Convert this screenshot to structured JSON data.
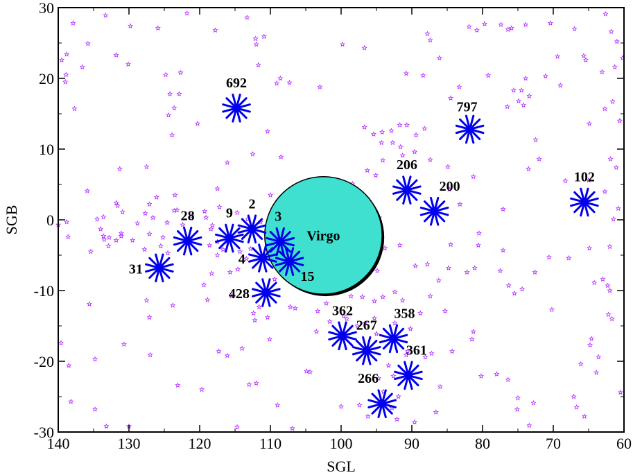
{
  "chart_data": {
    "type": "scatter",
    "title": "",
    "xlabel": "SGL",
    "ylabel": "SGB",
    "xlim": [
      140,
      60
    ],
    "ylim": [
      -30,
      30
    ],
    "x_ticks": [
      140,
      130,
      120,
      110,
      100,
      90,
      80,
      70,
      60
    ],
    "y_ticks": [
      -30,
      -20,
      -10,
      0,
      10,
      20,
      30
    ],
    "x_tick_labels": [
      "140",
      "130",
      "120",
      "110",
      "100",
      "90",
      "80",
      "70",
      "60"
    ],
    "y_tick_labels": [
      "-30",
      "-20",
      "-10",
      "0",
      "10",
      "20",
      "30"
    ],
    "grid": false,
    "colors": {
      "star": "#0000ee",
      "background_points": "#b026ff",
      "virgo_fill": "#40e0d0"
    },
    "virgo": {
      "label": "Virgo",
      "x": 102.5,
      "y": -2.2,
      "radius": 8.3
    },
    "marked_points": [
      {
        "label": "692",
        "x": 114.8,
        "y": 15.8
      },
      {
        "label": "797",
        "x": 81.8,
        "y": 12.8
      },
      {
        "label": "206",
        "x": 90.7,
        "y": 4.2
      },
      {
        "label": "200",
        "x": 86.8,
        "y": 1.2
      },
      {
        "label": "102",
        "x": 65.6,
        "y": 2.5
      },
      {
        "label": "28",
        "x": 121.7,
        "y": -3.0
      },
      {
        "label": "9",
        "x": 115.8,
        "y": -2.6
      },
      {
        "label": "2",
        "x": 112.6,
        "y": -1.3
      },
      {
        "label": "3",
        "x": 108.6,
        "y": -3.1
      },
      {
        "label": "4",
        "x": 111.1,
        "y": -5.4
      },
      {
        "label": "15",
        "x": 107.3,
        "y": -5.9
      },
      {
        "label": "31",
        "x": 125.7,
        "y": -6.8
      },
      {
        "label": "428",
        "x": 110.6,
        "y": -10.3
      },
      {
        "label": "362",
        "x": 99.8,
        "y": -16.4
      },
      {
        "label": "267",
        "x": 96.4,
        "y": -18.5
      },
      {
        "label": "358",
        "x": 92.6,
        "y": -16.8
      },
      {
        "label": "361",
        "x": 90.5,
        "y": -22.0
      },
      {
        "label": "266",
        "x": 94.2,
        "y": -26.0
      }
    ],
    "background_points": [
      [
        139.5,
        22.6
      ],
      [
        138.8,
        23.4
      ],
      [
        138.9,
        20.5
      ],
      [
        139.0,
        19.5
      ],
      [
        137.9,
        27.8
      ],
      [
        137.7,
        15.7
      ],
      [
        136.6,
        21.6
      ],
      [
        135.8,
        24.9
      ],
      [
        131.8,
        23.3
      ],
      [
        130.1,
        22.0
      ],
      [
        129.8,
        27.4
      ],
      [
        133.3,
        28.9
      ],
      [
        125.9,
        27.1
      ],
      [
        124.8,
        20.5
      ],
      [
        122.7,
        20.8
      ],
      [
        124.2,
        17.8
      ],
      [
        122.9,
        17.8
      ],
      [
        123.6,
        15.8
      ],
      [
        124.4,
        14.8
      ],
      [
        123.9,
        12.0
      ],
      [
        117.8,
        26.8
      ],
      [
        121.8,
        29.2
      ],
      [
        113.3,
        28.6
      ],
      [
        110.9,
        25.9
      ],
      [
        112.1,
        25.6
      ],
      [
        112.0,
        24.8
      ],
      [
        111.7,
        21.9
      ],
      [
        109.1,
        19.3
      ],
      [
        108.6,
        20.0
      ],
      [
        107.3,
        19.4
      ],
      [
        103.0,
        18.8
      ],
      [
        99.8,
        24.8
      ],
      [
        96.7,
        24.3
      ],
      [
        87.8,
        26.3
      ],
      [
        87.4,
        25.4
      ],
      [
        81.9,
        27.3
      ],
      [
        80.8,
        26.8
      ],
      [
        79.7,
        27.7
      ],
      [
        77.4,
        27.6
      ],
      [
        76.4,
        26.9
      ],
      [
        75.9,
        27.1
      ],
      [
        73.9,
        27.6
      ],
      [
        70.4,
        27.8
      ],
      [
        67.0,
        27.0
      ],
      [
        62.6,
        29.1
      ],
      [
        61.8,
        26.6
      ],
      [
        61.0,
        25.2
      ],
      [
        60.2,
        22.9
      ],
      [
        61.3,
        21.6
      ],
      [
        63.1,
        20.9
      ],
      [
        65.7,
        23.2
      ],
      [
        65.4,
        22.6
      ],
      [
        69.4,
        23.1
      ],
      [
        71.1,
        20.3
      ],
      [
        69.0,
        19.0
      ],
      [
        73.9,
        20.0
      ],
      [
        75.6,
        18.3
      ],
      [
        74.5,
        18.3
      ],
      [
        73.4,
        17.5
      ],
      [
        74.9,
        16.8
      ],
      [
        74.2,
        16.2
      ],
      [
        76.5,
        16.0
      ],
      [
        83.3,
        18.8
      ],
      [
        86.1,
        22.9
      ],
      [
        90.8,
        20.7
      ],
      [
        88.4,
        20.4
      ],
      [
        84.5,
        17.2
      ],
      [
        79.2,
        20.4
      ],
      [
        61.6,
        16.7
      ],
      [
        60.6,
        14.0
      ],
      [
        62.7,
        15.7
      ],
      [
        64.9,
        13.6
      ],
      [
        72.5,
        11.3
      ],
      [
        72.0,
        8.6
      ],
      [
        73.5,
        7.2
      ],
      [
        68.3,
        5.5
      ],
      [
        65.0,
        5.6
      ],
      [
        61.9,
        8.6
      ],
      [
        61.1,
        7.4
      ],
      [
        62.7,
        4.0
      ],
      [
        60.8,
        1.6
      ],
      [
        61.5,
        0.1
      ],
      [
        62.0,
        -3.8
      ],
      [
        64.9,
        -4.0
      ],
      [
        67.8,
        -5.4
      ],
      [
        63.0,
        -8.4
      ],
      [
        62.3,
        -9.3
      ],
      [
        62.0,
        -10.0
      ],
      [
        64.2,
        -8.9
      ],
      [
        62.2,
        -13.4
      ],
      [
        61.7,
        -14.0
      ],
      [
        64.6,
        -16.8
      ],
      [
        64.8,
        -17.7
      ],
      [
        63.6,
        -19.4
      ],
      [
        66.1,
        -20.4
      ],
      [
        63.9,
        -21.6
      ],
      [
        67.1,
        -25.0
      ],
      [
        66.7,
        -26.5
      ],
      [
        65.6,
        -27.8
      ],
      [
        60.5,
        -24.4
      ],
      [
        72.8,
        -25.9
      ],
      [
        75.1,
        -26.8
      ],
      [
        75.0,
        -25.2
      ],
      [
        76.4,
        -22.6
      ],
      [
        73.4,
        -29.1
      ],
      [
        78.0,
        -21.8
      ],
      [
        80.2,
        -22.1
      ],
      [
        81.3,
        -15.8
      ],
      [
        81.5,
        -16.9
      ],
      [
        81.1,
        -6.8
      ],
      [
        82.2,
        -7.4
      ],
      [
        77.1,
        -4.3
      ],
      [
        77.5,
        -7.2
      ],
      [
        76.3,
        -9.3
      ],
      [
        75.5,
        -10.4
      ],
      [
        74.4,
        -9.8
      ],
      [
        72.6,
        -7.4
      ],
      [
        70.6,
        -5.3
      ],
      [
        70.2,
        -12.7
      ],
      [
        84.5,
        -3.5
      ],
      [
        84.8,
        -6.8
      ],
      [
        87.8,
        -6.3
      ],
      [
        86.2,
        -8.6
      ],
      [
        87.4,
        -10.8
      ],
      [
        91.7,
        -3.6
      ],
      [
        93.8,
        -4.0
      ],
      [
        95.6,
        -5.7
      ],
      [
        94.9,
        -7.2
      ],
      [
        95.3,
        -1.5
      ],
      [
        97.5,
        -1.1
      ],
      [
        98.0,
        0.4
      ],
      [
        96.1,
        1.1
      ],
      [
        94.6,
        0.3
      ],
      [
        96.3,
        3.0
      ],
      [
        97.7,
        4.2
      ],
      [
        98.4,
        5.1
      ],
      [
        95.1,
        6.3
      ],
      [
        96.3,
        7.0
      ],
      [
        94.1,
        8.4
      ],
      [
        92.7,
        10.9
      ],
      [
        91.6,
        10.3
      ],
      [
        92.9,
        12.6
      ],
      [
        91.7,
        13.4
      ],
      [
        90.7,
        13.4
      ],
      [
        89.4,
        12.0
      ],
      [
        88.2,
        12.9
      ],
      [
        94.3,
        10.9
      ],
      [
        95.4,
        12.1
      ],
      [
        96.7,
        13.1
      ],
      [
        94.2,
        12.4
      ],
      [
        91.3,
        9.1
      ],
      [
        89.6,
        9.6
      ],
      [
        87.4,
        8.5
      ],
      [
        84.9,
        7.5
      ],
      [
        84.7,
        4.3
      ],
      [
        83.2,
        2.2
      ],
      [
        81.3,
        6.1
      ],
      [
        77.1,
        1.5
      ],
      [
        80.6,
        -3.6
      ],
      [
        80.5,
        -1.9
      ],
      [
        85.3,
        -12.9
      ],
      [
        84.3,
        -18.6
      ],
      [
        87.2,
        -18.9
      ],
      [
        86.0,
        -23.6
      ],
      [
        88.1,
        -19.4
      ],
      [
        90.2,
        -15.4
      ],
      [
        88.8,
        -13.2
      ],
      [
        91.3,
        -11.4
      ],
      [
        92.4,
        -10.2
      ],
      [
        94.1,
        -10.9
      ],
      [
        95.3,
        -11.5
      ],
      [
        97.0,
        -10.9
      ],
      [
        98.6,
        -10.8
      ],
      [
        102.1,
        -11.8
      ],
      [
        101.6,
        -14.4
      ],
      [
        103.5,
        -15.8
      ],
      [
        99.2,
        -14.0
      ],
      [
        99.6,
        -13.6
      ],
      [
        97.7,
        -15.0
      ],
      [
        96.6,
        -14.6
      ],
      [
        95.3,
        -13.9
      ],
      [
        95.0,
        -16.1
      ],
      [
        92.4,
        -14.6
      ],
      [
        90.8,
        -19.1
      ],
      [
        90.6,
        -18.6
      ],
      [
        93.3,
        -20.6
      ],
      [
        92.6,
        -22.1
      ],
      [
        91.9,
        -25.0
      ],
      [
        92.8,
        -26.6
      ],
      [
        94.0,
        -24.3
      ],
      [
        94.7,
        -22.4
      ],
      [
        92.1,
        -28.2
      ],
      [
        89.6,
        -28.6
      ],
      [
        86.6,
        -27.2
      ],
      [
        96.2,
        -27.8
      ],
      [
        97.4,
        -26.2
      ],
      [
        100.0,
        -26.4
      ],
      [
        104.9,
        -21.4
      ],
      [
        104.4,
        -21.5
      ],
      [
        106.9,
        -29.5
      ],
      [
        109.0,
        -26.2
      ],
      [
        112.0,
        -23.1
      ],
      [
        113.0,
        -23.3
      ],
      [
        114.7,
        -29.3
      ],
      [
        119.7,
        -24.0
      ],
      [
        116.1,
        -19.2
      ],
      [
        117.3,
        -18.6
      ],
      [
        114.0,
        -18.2
      ],
      [
        110.1,
        -16.9
      ],
      [
        112.2,
        -14.2
      ],
      [
        112.4,
        -13.2
      ],
      [
        110.4,
        -13.8
      ],
      [
        111.6,
        -12.3
      ],
      [
        107.2,
        -12.3
      ],
      [
        106.5,
        -12.5
      ],
      [
        109.4,
        -8.4
      ],
      [
        107.2,
        -8.1
      ],
      [
        105.2,
        -7.9
      ],
      [
        104.2,
        -7.4
      ],
      [
        103.3,
        -5.8
      ],
      [
        105.9,
        -6.6
      ],
      [
        108.0,
        -7.7
      ],
      [
        109.1,
        -5.1
      ],
      [
        112.8,
        -4.1
      ],
      [
        113.4,
        -5.5
      ],
      [
        114.6,
        -7.0
      ],
      [
        115.7,
        -7.4
      ],
      [
        116.7,
        -4.2
      ],
      [
        117.5,
        -5.0
      ],
      [
        118.6,
        -3.6
      ],
      [
        118.4,
        -1.3
      ],
      [
        118.2,
        -0.8
      ],
      [
        119.1,
        0.3
      ],
      [
        119.3,
        1.2
      ],
      [
        121.1,
        0.5
      ],
      [
        122.4,
        -0.7
      ],
      [
        123.2,
        1.4
      ],
      [
        124.6,
        -0.4
      ],
      [
        126.6,
        0.3
      ],
      [
        125.2,
        -2.5
      ],
      [
        125.5,
        -3.7
      ],
      [
        124.5,
        -4.7
      ],
      [
        127.1,
        -2.0
      ],
      [
        127.8,
        -4.2
      ],
      [
        128.8,
        -0.5
      ],
      [
        131.1,
        -1.9
      ],
      [
        129.5,
        -2.9
      ],
      [
        131.8,
        -2.9
      ],
      [
        133.6,
        0.4
      ],
      [
        134.5,
        0.1
      ],
      [
        134.0,
        -1.3
      ],
      [
        133.6,
        -2.3
      ],
      [
        132.9,
        -3.7
      ],
      [
        133.5,
        -2.8
      ],
      [
        132.8,
        -2.5
      ],
      [
        131.1,
        -2.3
      ],
      [
        131.8,
        2.4
      ],
      [
        131.6,
        2.0
      ],
      [
        130.9,
        1.1
      ],
      [
        127.7,
        0.9
      ],
      [
        127.1,
        2.2
      ],
      [
        126.1,
        3.2
      ],
      [
        123.5,
        3.5
      ],
      [
        123.6,
        1.3
      ],
      [
        121.4,
        -2.8
      ],
      [
        117.5,
        -3.1
      ],
      [
        116.1,
        -3.1
      ],
      [
        110.7,
        -1.8
      ],
      [
        107.2,
        -3.4
      ],
      [
        106.5,
        -2.1
      ],
      [
        106.4,
        0.5
      ],
      [
        107.3,
        1.1
      ],
      [
        105.3,
        3.0
      ],
      [
        104.6,
        4.4
      ],
      [
        103.3,
        4.5
      ],
      [
        110.0,
        3.5
      ],
      [
        111.4,
        -0.3
      ],
      [
        113.2,
        0.1
      ],
      [
        114.7,
        1.0
      ],
      [
        117.2,
        1.8
      ],
      [
        117.5,
        4.4
      ],
      [
        116.1,
        8.1
      ],
      [
        112.5,
        9.3
      ],
      [
        108.5,
        8.9
      ],
      [
        110.4,
        12.5
      ],
      [
        120.3,
        13.6
      ],
      [
        127.5,
        7.5
      ],
      [
        131.3,
        7.2
      ],
      [
        135.9,
        4.1
      ],
      [
        135.4,
        -4.5
      ],
      [
        138.8,
        -0.3
      ],
      [
        140.0,
        -0.7
      ],
      [
        138.6,
        -2.4
      ],
      [
        135.6,
        -11.9
      ],
      [
        139.6,
        -17.4
      ],
      [
        138.5,
        -20.6
      ],
      [
        138.2,
        -25.7
      ],
      [
        134.8,
        -19.7
      ],
      [
        134.8,
        -26.8
      ],
      [
        133.2,
        -29.2
      ],
      [
        130.0,
        -29.2
      ],
      [
        130.7,
        -17.6
      ],
      [
        127.0,
        -19.1
      ],
      [
        127.1,
        -13.8
      ],
      [
        127.5,
        -11.4
      ],
      [
        123.8,
        -12.1
      ],
      [
        123.1,
        -23.4
      ],
      [
        119.4,
        -9.2
      ],
      [
        118.3,
        -7.6
      ],
      [
        118.9,
        -11.3
      ],
      [
        115.5,
        -10.8
      ],
      [
        114.3,
        -4.5
      ],
      [
        108.2,
        -4.8
      ],
      [
        104.3,
        -9.8
      ],
      [
        102.9,
        -9.1
      ],
      [
        103.3,
        -12.9
      ],
      [
        89.5,
        -6.5
      ]
    ]
  }
}
